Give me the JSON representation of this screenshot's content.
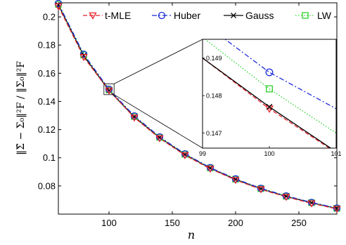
{
  "chart_data": {
    "type": "line",
    "xlabel": "n",
    "ylabel": "‖Σ̂ − Σ₀‖²F / ‖Σ₀‖²F",
    "xlim": [
      60,
      280
    ],
    "ylim": [
      0.06,
      0.21
    ],
    "x_ticks": [
      100,
      150,
      200,
      250
    ],
    "y_ticks": [
      0.08,
      0.1,
      0.12,
      0.14,
      0.16,
      0.18,
      0.2
    ],
    "x_tick_labels": [
      "100",
      "150",
      "200",
      "250"
    ],
    "y_tick_labels": [
      "0.08",
      "0.1",
      "0.12",
      "0.14",
      "0.16",
      "0.18",
      "0.2"
    ],
    "grid": false,
    "legend_placement": "top",
    "x": [
      60,
      80,
      100,
      120,
      140,
      160,
      180,
      200,
      220,
      240,
      260,
      280
    ],
    "series": [
      {
        "name": "t-MLE",
        "color": "#e8212a",
        "dash": "dashed",
        "marker": "triangle-down",
        "values": [
          0.2075,
          0.1715,
          0.1477,
          0.1285,
          0.1138,
          0.1018,
          0.0922,
          0.0842,
          0.0776,
          0.0722,
          0.0676,
          0.0637
        ]
      },
      {
        "name": "Huber",
        "color": "#1c2bd9",
        "dash": "dashdot",
        "marker": "circle",
        "values": [
          0.2095,
          0.1735,
          0.1486,
          0.1297,
          0.1148,
          0.1028,
          0.093,
          0.085,
          0.0783,
          0.0729,
          0.0683,
          0.0643
        ]
      },
      {
        "name": "Gauss",
        "color": "#000000",
        "dash": "solid",
        "marker": "x",
        "values": [
          0.2085,
          0.1725,
          0.1477,
          0.129,
          0.1143,
          0.1023,
          0.0926,
          0.0846,
          0.078,
          0.0726,
          0.068,
          0.064
        ]
      },
      {
        "name": "LW",
        "color": "#2ed12e",
        "dash": "dotted",
        "marker": "square",
        "values": [
          0.209,
          0.173,
          0.1482,
          0.1293,
          0.1145,
          0.1025,
          0.0928,
          0.0848,
          0.0781,
          0.0727,
          0.0681,
          0.0641
        ]
      }
    ],
    "inset": {
      "xlim": [
        99,
        101
      ],
      "ylim": [
        0.1466,
        0.1495
      ],
      "x_ticks": [
        99,
        100,
        101
      ],
      "y_ticks": [
        0.147,
        0.148,
        0.149
      ],
      "x_tick_labels": [
        "99",
        "100",
        "101"
      ],
      "y_tick_labels": [
        "0.147",
        "0.148",
        "0.149"
      ],
      "series_lines": [
        {
          "name": "t-MLE",
          "x": [
            99,
            100,
            101
          ],
          "values": [
            0.149,
            0.14765,
            0.14648
          ]
        },
        {
          "name": "Huber",
          "x": [
            99,
            100,
            101
          ],
          "values": [
            0.14995,
            0.14862,
            0.14765
          ]
        },
        {
          "name": "Gauss",
          "x": [
            99,
            100,
            101
          ],
          "values": [
            0.149,
            0.1477,
            0.1465
          ]
        },
        {
          "name": "LW",
          "x": [
            99,
            100,
            101
          ],
          "values": [
            0.14955,
            0.14818,
            0.147
          ]
        }
      ],
      "markers": [
        {
          "name": "t-MLE",
          "x": 100,
          "y": 0.14765
        },
        {
          "name": "Huber",
          "x": 100,
          "y": 0.14862
        },
        {
          "name": "Gauss",
          "x": 100,
          "y": 0.1477
        },
        {
          "name": "LW",
          "x": 100,
          "y": 0.14818
        }
      ]
    },
    "zoom_box": {
      "x": [
        96,
        104
      ],
      "y": [
        0.1448,
        0.1525
      ]
    }
  }
}
